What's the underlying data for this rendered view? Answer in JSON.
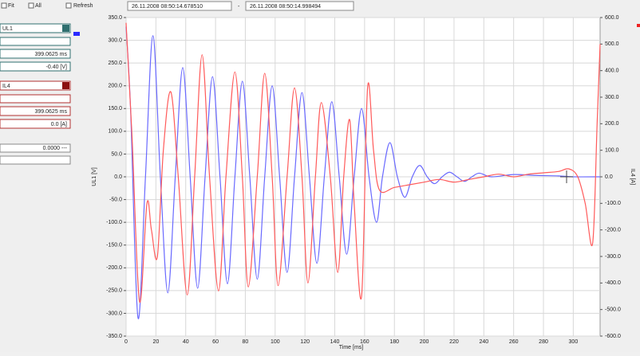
{
  "toolbar": {
    "fit": "Fit",
    "all": "All",
    "refresh": "Refresh",
    "start_time": "26.11.2008  08:50:14.678510",
    "separator": "-",
    "end_time": "26.11.2008  08:50:14.998494"
  },
  "panel": {
    "ch1_time": "399.0625 ms",
    "ch1_value": "-0.40 [V]",
    "ch2_time": "399.0625 ms",
    "ch2_value": "0.0 [A]",
    "delta": "0.0000 ---"
  },
  "chart_data": {
    "type": "line",
    "x_label": "Time [ms]",
    "y_label": "UL1 [V]",
    "y2_label": "IL4 [A]",
    "grid": true,
    "xlim": [
      0,
      318
    ],
    "xticks": [
      0,
      20,
      40,
      60,
      80,
      100,
      120,
      140,
      160,
      180,
      200,
      220,
      240,
      260,
      280,
      300
    ],
    "ylim": [
      -350,
      350
    ],
    "yticks": [
      {
        "value": -350,
        "label": "-350.0"
      },
      {
        "value": -300,
        "label": "-300.0"
      },
      {
        "value": -250,
        "label": "-250.0"
      },
      {
        "value": -200,
        "label": "-200.0"
      },
      {
        "value": -150,
        "label": "-150.0"
      },
      {
        "value": -100,
        "label": "-100.0"
      },
      {
        "value": -50,
        "label": "-50.0"
      },
      {
        "value": 0,
        "label": "0.0"
      },
      {
        "value": 50,
        "label": "50.0"
      },
      {
        "value": 100,
        "label": "100.0"
      },
      {
        "value": 150,
        "label": "150.0"
      },
      {
        "value": 200,
        "label": "200.0"
      },
      {
        "value": 250,
        "label": "250.0"
      },
      {
        "value": 300,
        "label": "300.0"
      },
      {
        "value": 350,
        "label": "350.0"
      }
    ],
    "y2lim": [
      -600,
      600
    ],
    "y2ticks": [
      {
        "value": -600,
        "label": "-600.0"
      },
      {
        "value": -500,
        "label": "-500.0"
      },
      {
        "value": -400,
        "label": "-400.0"
      },
      {
        "value": -300,
        "label": "-300.0"
      },
      {
        "value": -200,
        "label": "-200.0"
      },
      {
        "value": -100,
        "label": "-100.0"
      },
      {
        "value": 0,
        "label": "0.0"
      },
      {
        "value": 100,
        "label": "100.0"
      },
      {
        "value": 200,
        "label": "200.0"
      },
      {
        "value": 300,
        "label": "300.0"
      },
      {
        "value": 400,
        "label": "400.0"
      },
      {
        "value": 500,
        "label": "500.0"
      },
      {
        "value": 600,
        "label": "600.0"
      }
    ],
    "series": [
      {
        "name": "UL1",
        "color": "#6a6aff",
        "axis": "y",
        "x": [
          0,
          3,
          8,
          13,
          18,
          23,
          28,
          33,
          38,
          43,
          48,
          53,
          58,
          63,
          68,
          73,
          78,
          83,
          88,
          93,
          98,
          103,
          108,
          113,
          118,
          123,
          128,
          133,
          138,
          143,
          148,
          153,
          158,
          163,
          168,
          172,
          177,
          182,
          187,
          192,
          197,
          202,
          207,
          212,
          217,
          222,
          227,
          232,
          237,
          245,
          260,
          275,
          290,
          300,
          318
        ],
        "values": [
          330,
          150,
          -310,
          0,
          310,
          0,
          -255,
          0,
          240,
          0,
          -245,
          0,
          220,
          0,
          -235,
          0,
          210,
          0,
          -225,
          0,
          200,
          0,
          -210,
          0,
          185,
          0,
          -190,
          0,
          165,
          0,
          -170,
          0,
          150,
          0,
          -100,
          0,
          75,
          0,
          -45,
          0,
          25,
          0,
          -15,
          0,
          10,
          0,
          -10,
          0,
          8,
          0,
          5,
          3,
          2,
          0,
          0
        ]
      },
      {
        "name": "IL4",
        "color": "#ff5a5a",
        "axis": "y2",
        "x": [
          0,
          4,
          9,
          14,
          17,
          21,
          25,
          30,
          35,
          41,
          46,
          51,
          56,
          62,
          67,
          73,
          78,
          82,
          88,
          93,
          98,
          102,
          108,
          113,
          118,
          122,
          127,
          131,
          137,
          142,
          146,
          150,
          153,
          158,
          162,
          166,
          170,
          180,
          190,
          200,
          210,
          220,
          230,
          240,
          250,
          260,
          270,
          280,
          290,
          297,
          303,
          308,
          313,
          316,
          318
        ],
        "values": [
          580,
          150,
          -470,
          -100,
          -200,
          -300,
          100,
          320,
          0,
          -445,
          0,
          460,
          0,
          -430,
          0,
          395,
          0,
          -415,
          0,
          390,
          0,
          -410,
          0,
          335,
          0,
          -400,
          0,
          280,
          0,
          -360,
          0,
          215,
          -100,
          -450,
          335,
          100,
          -50,
          -40,
          -30,
          -20,
          -10,
          -20,
          -10,
          0,
          10,
          0,
          10,
          15,
          20,
          30,
          0,
          -100,
          -250,
          200,
          500
        ]
      }
    ]
  }
}
